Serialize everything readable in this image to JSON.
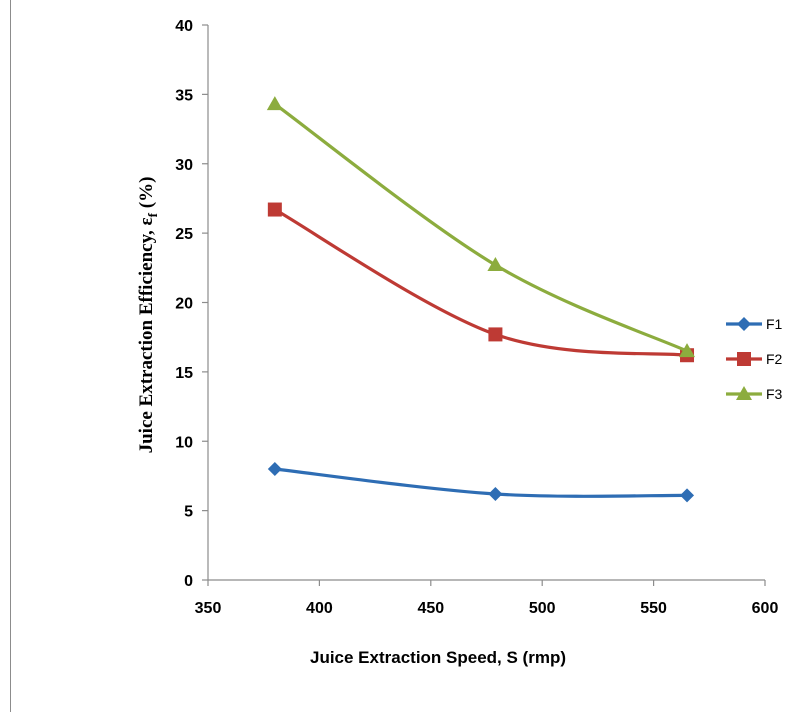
{
  "chart_data": {
    "type": "line",
    "xlabel": "Juice Extraction Speed, S (rmp)",
    "ylabel_main": "Juice Extraction Efficiency, ε",
    "ylabel_sub": "f",
    "ylabel_tail": " (%)",
    "xlim": [
      350,
      600
    ],
    "ylim": [
      0,
      40
    ],
    "x_ticks": [
      350,
      400,
      450,
      500,
      550,
      600
    ],
    "y_ticks": [
      0,
      5,
      10,
      15,
      20,
      25,
      30,
      35,
      40
    ],
    "grid": false,
    "legend_position": "right",
    "smooth": true,
    "series": [
      {
        "name": "F1",
        "color": "#2e6db4",
        "marker": "diamond",
        "x": [
          380,
          479,
          565
        ],
        "y": [
          8.0,
          6.2,
          6.1
        ]
      },
      {
        "name": "F2",
        "color": "#be3a34",
        "marker": "square",
        "x": [
          380,
          479,
          565
        ],
        "y": [
          26.7,
          17.7,
          16.2
        ]
      },
      {
        "name": "F3",
        "color": "#8cac3e",
        "marker": "triangle",
        "x": [
          380,
          479,
          565
        ],
        "y": [
          34.3,
          22.7,
          16.5
        ]
      }
    ]
  }
}
